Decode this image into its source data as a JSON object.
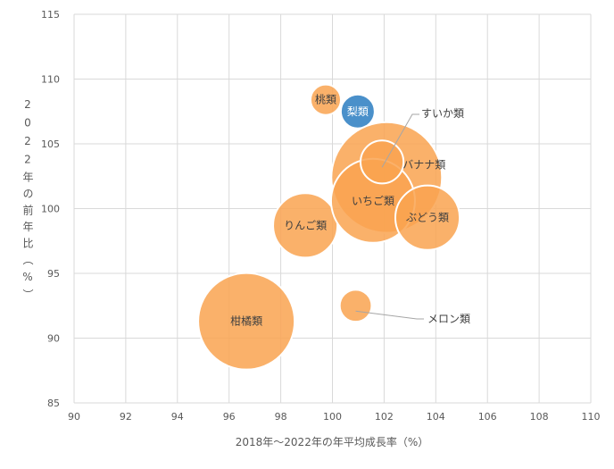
{
  "chart_data": {
    "type": "bubble",
    "xlabel": "2018年～2022年の年平均成長率（%）",
    "ylabel": "2022年の前年比（%）",
    "xlim": [
      90,
      110
    ],
    "ylim": [
      85,
      115
    ],
    "xticks": [
      "90",
      "92",
      "94",
      "96",
      "98",
      "100",
      "102",
      "104",
      "106",
      "108",
      "110"
    ],
    "yticks": [
      "85",
      "90",
      "95",
      "100",
      "105",
      "110",
      "115"
    ],
    "grid": true,
    "colors": {
      "default": "#F9A350",
      "highlight": "#4A90CA",
      "grid": "#D9D9D9",
      "text": "#595959"
    },
    "series": [
      {
        "name": "柑橘類",
        "x": 96.67,
        "y": 91.3,
        "size": 29.2,
        "color": "default"
      },
      {
        "name": "りんご類",
        "x": 98.95,
        "y": 98.7,
        "size": 13.0,
        "color": "default"
      },
      {
        "name": "メロン類",
        "x": 100.9,
        "y": 92.5,
        "size": 3.2,
        "color": "default"
      },
      {
        "name": "桃類",
        "x": 99.74,
        "y": 108.4,
        "size": 2.9,
        "color": "default"
      },
      {
        "name": "梨類",
        "x": 100.98,
        "y": 107.5,
        "size": 3.6,
        "color": "highlight"
      },
      {
        "name": "バナナ類",
        "x": 102.1,
        "y": 102.4,
        "size": 38.4,
        "color": "default"
      },
      {
        "name": "いちご類",
        "x": 101.57,
        "y": 100.6,
        "size": 22.1,
        "color": "default"
      },
      {
        "name": "ぶどう類",
        "x": 103.68,
        "y": 99.3,
        "size": 13.0,
        "color": "default"
      },
      {
        "name": "すいか類",
        "x": 101.92,
        "y": 103.6,
        "size": 5.8,
        "color": "default"
      }
    ]
  }
}
